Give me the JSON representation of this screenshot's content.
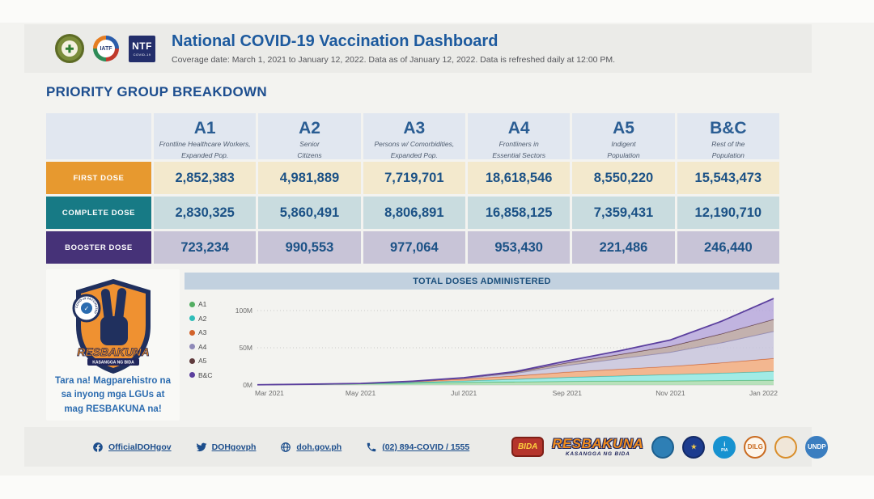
{
  "header": {
    "title": "National COVID-19 Vaccination Dashboard",
    "subtitle": "Coverage date: March 1, 2021 to January 12, 2022. Data is refreshed daily at 12:00 PM.",
    "subtitle_full": "Coverage date: March 1, 2021 to January 12, 2022. Data as of January 12, 2022. Data is refreshed daily at 12:00 PM.",
    "doh_seal_glyph": "✚",
    "iatf_label": "IATF",
    "ntf_line1": "NTF",
    "ntf_line2": "COVID-19"
  },
  "section_title": "PRIORITY GROUP BREAKDOWN",
  "table": {
    "columns": [
      {
        "code": "A1",
        "desc1": "Frontline Healthcare Workers,",
        "desc2": "Expanded Pop."
      },
      {
        "code": "A2",
        "desc1": "Senior",
        "desc2": "Citizens"
      },
      {
        "code": "A3",
        "desc1": "Persons w/ Comorbidities,",
        "desc2": "Expanded Pop."
      },
      {
        "code": "A4",
        "desc1": "Frontliners in",
        "desc2": "Essential Sectors"
      },
      {
        "code": "A5",
        "desc1": "Indigent",
        "desc2": "Population"
      },
      {
        "code": "B&C",
        "desc1": "Rest of the",
        "desc2": "Population"
      }
    ],
    "rows": [
      {
        "label": "FIRST DOSE",
        "label_bg": "#e7992f",
        "row_bg": "#f3e9cd",
        "values": [
          "2,852,383",
          "4,981,889",
          "7,719,701",
          "18,618,546",
          "8,550,220",
          "15,543,473"
        ]
      },
      {
        "label": "COMPLETE DOSE",
        "label_bg": "#177a85",
        "row_bg": "#c9dcdf",
        "values": [
          "2,830,325",
          "5,860,491",
          "8,806,891",
          "16,858,125",
          "7,359,431",
          "12,190,710"
        ]
      },
      {
        "label": "BOOSTER DOSE",
        "label_bg": "#463278",
        "row_bg": "#c8c4d7",
        "values": [
          "723,234",
          "990,553",
          "977,064",
          "953,430",
          "221,486",
          "246,440"
        ]
      }
    ]
  },
  "promo": {
    "logo_title": "RESBAKUNA",
    "logo_subtitle": "KASANGGA NG BIDA",
    "badge_text": "COVID-19 VACCINATED",
    "text": "Tara na! Magparehistro na sa inyong mga LGUs at mag RESBAKUNA na!"
  },
  "chart_data": {
    "type": "area",
    "stacked": true,
    "title": "TOTAL DOSES ADMINISTERED",
    "units": "millions of cumulative doses",
    "x": [
      "Mar 2021",
      "Apr 2021",
      "May 2021",
      "Jun 2021",
      "Jul 2021",
      "Aug 2021",
      "Sep 2021",
      "Oct 2021",
      "Nov 2021",
      "Dec 2021",
      "Jan 2022"
    ],
    "xticks": [
      "Mar 2021",
      "May 2021",
      "Jul 2021",
      "Sep 2021",
      "Nov 2021",
      "Jan 2022"
    ],
    "yticks": [
      "0M",
      "50M",
      "100M"
    ],
    "ytick_values": [
      0,
      50,
      100
    ],
    "ylim": [
      0,
      125
    ],
    "grid": "dotted-horizontal",
    "legend_position": "left",
    "series": [
      {
        "name": "A1",
        "color": "#53ae62",
        "fill": "#a9dcae",
        "values": [
          0.3,
          0.8,
          1.5,
          2.5,
          3.5,
          4.2,
          4.8,
          5.2,
          5.5,
          5.9,
          6.4
        ]
      },
      {
        "name": "A2",
        "color": "#2fbdb8",
        "fill": "#8ce8e2",
        "values": [
          0.0,
          0.1,
          0.3,
          1.0,
          2.0,
          3.5,
          5.5,
          7.0,
          8.5,
          10.0,
          11.8
        ]
      },
      {
        "name": "A3",
        "color": "#d2622a",
        "fill": "#f2a878",
        "values": [
          0.0,
          0.1,
          0.2,
          1.0,
          2.5,
          4.5,
          7.0,
          9.0,
          11.0,
          14.0,
          17.5
        ]
      },
      {
        "name": "A4",
        "color": "#8f8ab8",
        "fill": "#c6c2dc",
        "values": [
          0.0,
          0.0,
          0.0,
          0.3,
          1.0,
          3.5,
          9.0,
          14.0,
          19.0,
          27.0,
          36.4
        ]
      },
      {
        "name": "A5",
        "color": "#5f3b3d",
        "fill": "#b7a09e",
        "values": [
          0.0,
          0.0,
          0.0,
          0.2,
          0.5,
          1.5,
          3.5,
          5.5,
          8.0,
          12.0,
          16.1
        ]
      },
      {
        "name": "B&C",
        "color": "#5b3f9e",
        "fill": "#b4a4dc",
        "values": [
          0.0,
          0.0,
          0.0,
          0.0,
          0.2,
          0.8,
          2.5,
          5.0,
          8.5,
          17.0,
          28.0
        ]
      }
    ]
  },
  "footer": {
    "links": [
      {
        "icon": "facebook-icon",
        "label": "OfficialDOHgov"
      },
      {
        "icon": "twitter-icon",
        "label": "DOHgovph"
      },
      {
        "icon": "globe-icon",
        "label": "doh.gov.ph"
      },
      {
        "icon": "phone-icon",
        "label": "(02) 894-COVID / 1555"
      }
    ],
    "logos": [
      {
        "name": "bida-badge-logo",
        "type": "badge",
        "text": "BIDA",
        "bg": "#b5352c",
        "fg": "#ffd23e"
      },
      {
        "name": "resbakuna-wordmark-logo",
        "type": "wordmark",
        "text": "RESBAKUNA",
        "subtext": "KASANGGA NG BIDA",
        "fg": "#ef8c1e",
        "sub_fg": "#20265c"
      },
      {
        "name": "blue-seal-logo",
        "type": "circle",
        "text": "",
        "bg": "#2e7fb5",
        "ring": "#1d5f8e",
        "fg": "#ffe08a"
      },
      {
        "name": "navy-star-seal-logo",
        "type": "circle",
        "text": "★",
        "bg": "#1d3c8f",
        "ring": "#142a66",
        "fg": "#f2c94c"
      },
      {
        "name": "pia-logo",
        "type": "circle",
        "text": "i",
        "subtext": "PIA",
        "bg": "#1792d0",
        "ring": "#1792d0",
        "fg": "#ffffff"
      },
      {
        "name": "dilg-seal-logo",
        "type": "circle",
        "text": "DILG",
        "bg": "#fdf6ec",
        "ring": "#c96a1f",
        "fg": "#c96a1f"
      },
      {
        "name": "pcoo-seal-logo",
        "type": "circle",
        "text": "",
        "bg": "#f0e6d8",
        "ring": "#d98e2b",
        "fg": "#27408b"
      },
      {
        "name": "undp-logo",
        "type": "circle",
        "text": "UNDP",
        "bg": "#3b7ec0",
        "ring": "#3b7ec0",
        "fg": "#ffffff"
      }
    ]
  },
  "colors": {
    "accent_blue": "#1d5a9e",
    "first_dose": "#e7992f",
    "complete_dose": "#177a85",
    "booster_dose": "#463278",
    "chart_titlebar": "#c2d1df",
    "table_header_bg": "#e1e7f0"
  }
}
